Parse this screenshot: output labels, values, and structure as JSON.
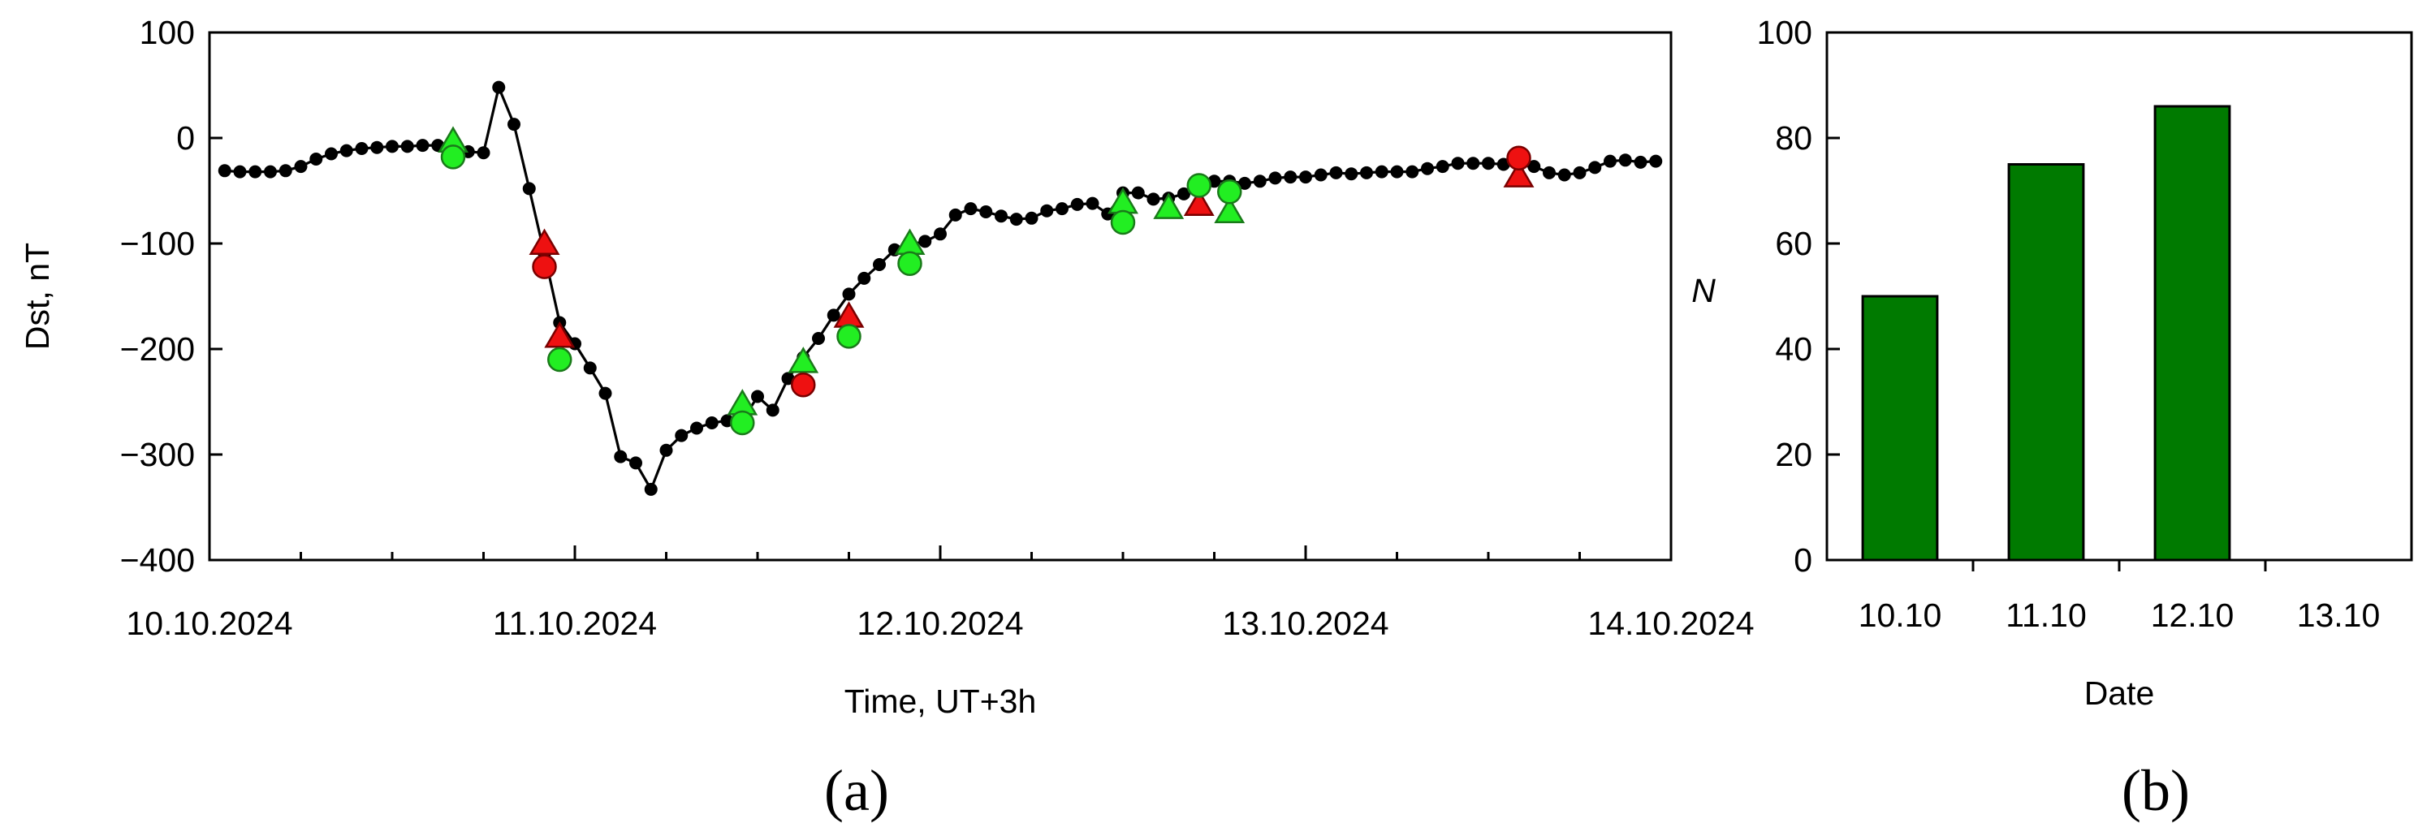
{
  "panels": {
    "a_label": "(a)",
    "b_label": "(b)"
  },
  "colors": {
    "line": "#000000",
    "marker_green": "#22ee22",
    "marker_green_edge": "#1a7a1a",
    "marker_red": "#ee1111",
    "marker_red_edge": "#7a0000",
    "bar_fill": "#007a00",
    "bar_edge": "#000000"
  },
  "chart_data": [
    {
      "type": "line",
      "xlabel": "Time, UT+3h",
      "ylabel": "Dst, nT",
      "x_unit": "hours",
      "xlim_dates": [
        "10.10.2024 00:00",
        "14.10.2024 00:00"
      ],
      "xticks": [
        "10.10.2024",
        "11.10.2024",
        "12.10.2024",
        "13.10.2024",
        "14.10.2024"
      ],
      "ylim": [
        -400,
        100
      ],
      "yticks": [
        "100",
        "0",
        "−100",
        "−200",
        "−300",
        "−400"
      ],
      "grid": false,
      "series": [
        {
          "x": [
            "10.10.2024 01:00",
            "10.10.2024 02:00",
            "10.10.2024 03:00",
            "10.10.2024 04:00",
            "10.10.2024 05:00",
            "10.10.2024 06:00",
            "10.10.2024 07:00",
            "10.10.2024 08:00",
            "10.10.2024 09:00",
            "10.10.2024 10:00",
            "10.10.2024 11:00",
            "10.10.2024 12:00",
            "10.10.2024 13:00",
            "10.10.2024 14:00",
            "10.10.2024 15:00",
            "10.10.2024 16:00",
            "10.10.2024 17:00",
            "10.10.2024 18:00",
            "10.10.2024 19:00",
            "10.10.2024 20:00",
            "10.10.2024 21:00",
            "10.10.2024 22:00",
            "10.10.2024 23:00",
            "11.10.2024 00:00",
            "11.10.2024 01:00",
            "11.10.2024 02:00",
            "11.10.2024 03:00",
            "11.10.2024 04:00",
            "11.10.2024 05:00",
            "11.10.2024 06:00",
            "11.10.2024 07:00",
            "11.10.2024 08:00",
            "11.10.2024 09:00",
            "11.10.2024 10:00",
            "11.10.2024 11:00",
            "11.10.2024 12:00",
            "11.10.2024 13:00",
            "11.10.2024 14:00",
            "11.10.2024 15:00",
            "11.10.2024 16:00",
            "11.10.2024 17:00",
            "11.10.2024 18:00",
            "11.10.2024 19:00",
            "11.10.2024 20:00",
            "11.10.2024 21:00",
            "11.10.2024 22:00",
            "11.10.2024 23:00",
            "12.10.2024 00:00",
            "12.10.2024 01:00",
            "12.10.2024 02:00",
            "12.10.2024 03:00",
            "12.10.2024 04:00",
            "12.10.2024 05:00",
            "12.10.2024 06:00",
            "12.10.2024 07:00",
            "12.10.2024 08:00",
            "12.10.2024 09:00",
            "12.10.2024 10:00",
            "12.10.2024 11:00",
            "12.10.2024 12:00",
            "12.10.2024 13:00",
            "12.10.2024 14:00",
            "12.10.2024 15:00",
            "12.10.2024 16:00",
            "12.10.2024 17:00",
            "12.10.2024 18:00",
            "12.10.2024 19:00",
            "12.10.2024 20:00",
            "12.10.2024 21:00",
            "12.10.2024 22:00",
            "12.10.2024 23:00",
            "13.10.2024 00:00",
            "13.10.2024 01:00",
            "13.10.2024 02:00",
            "13.10.2024 03:00",
            "13.10.2024 04:00",
            "13.10.2024 05:00",
            "13.10.2024 06:00",
            "13.10.2024 07:00",
            "13.10.2024 08:00",
            "13.10.2024 09:00",
            "13.10.2024 10:00",
            "13.10.2024 11:00",
            "13.10.2024 12:00",
            "13.10.2024 13:00",
            "13.10.2024 14:00",
            "13.10.2024 15:00",
            "13.10.2024 16:00",
            "13.10.2024 17:00",
            "13.10.2024 18:00",
            "13.10.2024 19:00",
            "13.10.2024 20:00",
            "13.10.2024 21:00",
            "13.10.2024 22:00",
            "13.10.2024 23:00"
          ],
          "y": [
            -31,
            -32,
            -32,
            -32,
            -31,
            -27,
            -20,
            -15,
            -12,
            -10,
            -9,
            -8,
            -8,
            -7,
            -7,
            -10,
            -13,
            -14,
            48,
            13,
            -48,
            -110,
            -175,
            -195,
            -218,
            -242,
            -302,
            -308,
            -333,
            -296,
            -282,
            -275,
            -270,
            -268,
            -268,
            -245,
            -258,
            -228,
            -208,
            -190,
            -168,
            -148,
            -133,
            -120,
            -106,
            -101,
            -98,
            -91,
            -73,
            -67,
            -70,
            -74,
            -77,
            -76,
            -69,
            -67,
            -63,
            -62,
            -72,
            -52,
            -52,
            -58,
            -57,
            -53,
            -47,
            -41,
            -41,
            -43,
            -41,
            -38,
            -37,
            -37,
            -35,
            -33,
            -34,
            -33,
            -32,
            -32,
            -32,
            -29,
            -27,
            -24,
            -24,
            -24,
            -25,
            -26,
            -27,
            -33,
            -35,
            -33,
            -28,
            -22,
            -21,
            -23,
            -22
          ]
        }
      ],
      "markers": [
        {
          "shape": "triangle",
          "color": "green",
          "x": "10.10.2024 16:00",
          "y": -3
        },
        {
          "shape": "circle",
          "color": "green",
          "x": "10.10.2024 16:00",
          "y": -18
        },
        {
          "shape": "triangle",
          "color": "red",
          "x": "10.10.2024 22:00",
          "y": -100
        },
        {
          "shape": "circle",
          "color": "red",
          "x": "10.10.2024 22:00",
          "y": -122
        },
        {
          "shape": "triangle",
          "color": "red",
          "x": "10.10.2024 23:00",
          "y": -188
        },
        {
          "shape": "circle",
          "color": "green",
          "x": "10.10.2024 23:00",
          "y": -210
        },
        {
          "shape": "triangle",
          "color": "green",
          "x": "11.10.2024 11:00",
          "y": -252
        },
        {
          "shape": "circle",
          "color": "green",
          "x": "11.10.2024 11:00",
          "y": -270
        },
        {
          "shape": "triangle",
          "color": "green",
          "x": "11.10.2024 15:00",
          "y": -212
        },
        {
          "shape": "circle",
          "color": "red",
          "x": "11.10.2024 15:00",
          "y": -234
        },
        {
          "shape": "triangle",
          "color": "red",
          "x": "11.10.2024 18:00",
          "y": -169
        },
        {
          "shape": "circle",
          "color": "green",
          "x": "11.10.2024 18:00",
          "y": -188
        },
        {
          "shape": "triangle",
          "color": "green",
          "x": "11.10.2024 22:00",
          "y": -100
        },
        {
          "shape": "circle",
          "color": "green",
          "x": "11.10.2024 22:00",
          "y": -119
        },
        {
          "shape": "triangle",
          "color": "green",
          "x": "12.10.2024 12:00",
          "y": -61
        },
        {
          "shape": "circle",
          "color": "green",
          "x": "12.10.2024 12:00",
          "y": -80
        },
        {
          "shape": "triangle",
          "color": "green",
          "x": "12.10.2024 15:00",
          "y": -66
        },
        {
          "shape": "triangle",
          "color": "red",
          "x": "12.10.2024 17:00",
          "y": -63
        },
        {
          "shape": "circle",
          "color": "green",
          "x": "12.10.2024 17:00",
          "y": -45
        },
        {
          "shape": "triangle",
          "color": "green",
          "x": "12.10.2024 19:00",
          "y": -70
        },
        {
          "shape": "circle",
          "color": "green",
          "x": "12.10.2024 19:00",
          "y": -51
        },
        {
          "shape": "triangle",
          "color": "red",
          "x": "13.10.2024 14:00",
          "y": -36
        },
        {
          "shape": "circle",
          "color": "red",
          "x": "13.10.2024 14:00",
          "y": -19
        }
      ]
    },
    {
      "type": "bar",
      "categories": [
        "10.10",
        "11.10",
        "12.10",
        "13.10"
      ],
      "values": [
        50,
        75,
        86,
        0
      ],
      "xlabel": "Date",
      "ylabel": "N",
      "ylim": [
        0,
        100
      ],
      "yticks": [
        "100",
        "80",
        "60",
        "40",
        "20",
        "0"
      ],
      "grid": false
    }
  ]
}
